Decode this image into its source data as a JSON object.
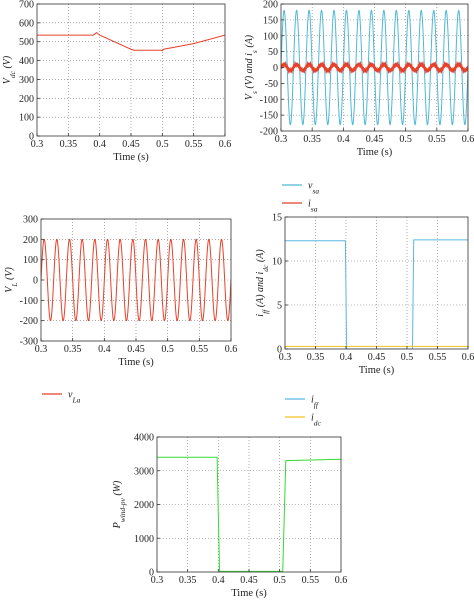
{
  "chart_data": [
    {
      "id": "vdc",
      "type": "line",
      "xlabel": "Time (s)",
      "ylabel": "V_dc (V)",
      "xlim": [
        0.3,
        0.6
      ],
      "ylim": [
        0,
        700
      ],
      "xticks": [
        0.3,
        0.35,
        0.4,
        0.45,
        0.5,
        0.55,
        0.6
      ],
      "yticks": [
        0,
        100,
        200,
        300,
        400,
        500,
        600,
        700
      ],
      "grid": "dotted",
      "series": [
        {
          "color": "#e8412b",
          "x": [
            0.3,
            0.39,
            0.392,
            0.395,
            0.4,
            0.45,
            0.455,
            0.498,
            0.5,
            0.502,
            0.55,
            0.6
          ],
          "y": [
            535,
            535,
            540,
            548,
            535,
            460,
            455,
            455,
            452,
            460,
            490,
            535
          ]
        }
      ]
    },
    {
      "id": "source",
      "type": "line",
      "xlabel": "Time (s)",
      "ylabel": "V_s (V) and i_s (A)",
      "xlim": [
        0.3,
        0.6
      ],
      "ylim": [
        -200,
        200
      ],
      "xticks": [
        0.3,
        0.35,
        0.4,
        0.45,
        0.5,
        0.55,
        0.6
      ],
      "yticks": [
        -200,
        -150,
        -100,
        -50,
        0,
        50,
        100,
        150,
        200
      ],
      "grid": "dotted",
      "series": [
        {
          "name": "v_sa",
          "color": "#4fb8d8",
          "waveform": "sine",
          "amplitude": 180,
          "frequency_hz": 50
        },
        {
          "name": "i_sa",
          "color": "#e8412b",
          "waveform": "sine",
          "amplitude": 10,
          "frequency_hz": 50
        }
      ]
    },
    {
      "id": "load",
      "type": "line",
      "xlabel": "Time (s)",
      "ylabel": "V_L (V)",
      "xlim": [
        0.3,
        0.6
      ],
      "ylim": [
        -300,
        300
      ],
      "xticks": [
        0.3,
        0.35,
        0.4,
        0.45,
        0.5,
        0.55,
        0.6
      ],
      "yticks": [
        -300,
        -200,
        -100,
        0,
        100,
        200,
        300
      ],
      "grid": "dotted",
      "series": [
        {
          "name": "v_La",
          "color": "#e8412b",
          "waveform": "sine",
          "amplitude": 200,
          "frequency_hz": 50
        }
      ]
    },
    {
      "id": "currents",
      "type": "line",
      "xlabel": "Time (s)",
      "ylabel": "i_ff (A) and i_dc (A)",
      "xlim": [
        0.3,
        0.6
      ],
      "ylim": [
        0,
        15
      ],
      "xticks": [
        0.3,
        0.35,
        0.4,
        0.45,
        0.5,
        0.55,
        0.6
      ],
      "yticks": [
        0,
        5,
        10,
        15
      ],
      "grid": "dotted",
      "series": [
        {
          "name": "i_ff",
          "color": "#5bb8e0",
          "x": [
            0.3,
            0.399,
            0.401,
            0.509,
            0.511,
            0.6
          ],
          "y": [
            12.3,
            12.3,
            0,
            0,
            12.4,
            12.4
          ]
        },
        {
          "name": "i_dc",
          "color": "#f0c020",
          "x": [
            0.3,
            0.6
          ],
          "y": [
            0.3,
            0.3
          ]
        }
      ]
    },
    {
      "id": "power",
      "type": "line",
      "xlabel": "Time (s)",
      "ylabel": "P_wind-pv (W)",
      "xlim": [
        0.3,
        0.6
      ],
      "ylim": [
        0,
        4000
      ],
      "xticks": [
        0.3,
        0.35,
        0.4,
        0.45,
        0.5,
        0.55,
        0.6
      ],
      "yticks": [
        0,
        1000,
        2000,
        3000,
        4000
      ],
      "grid": "dotted",
      "series": [
        {
          "color": "#33dd33",
          "x": [
            0.3,
            0.398,
            0.402,
            0.505,
            0.51,
            0.6
          ],
          "y": [
            3400,
            3400,
            20,
            20,
            3300,
            3340
          ]
        }
      ]
    }
  ],
  "legends": {
    "source": [
      {
        "sym": "v",
        "sub": "sa",
        "color": "#4fb8d8"
      },
      {
        "sym": "i",
        "sub": "sa",
        "color": "#e8412b"
      }
    ],
    "load": [
      {
        "sym": "v",
        "sub": "La",
        "color": "#e8412b"
      }
    ],
    "currents": [
      {
        "sym": "i",
        "sub": "ff",
        "color": "#5bb8e0"
      },
      {
        "sym": "i",
        "sub": "dc",
        "color": "#f0c020"
      }
    ]
  }
}
